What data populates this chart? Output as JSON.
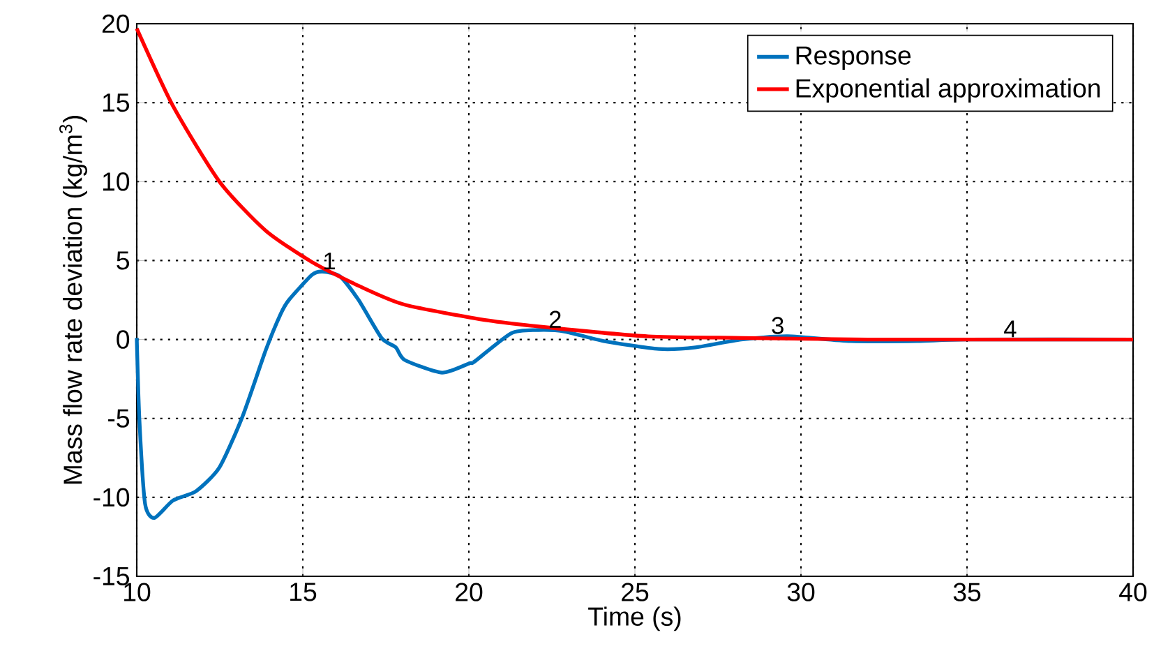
{
  "chart_data": {
    "type": "line",
    "xlabel": "Time (s)",
    "ylabel": "Mass flow rate deviation (kg/m$^{3}$)",
    "xlim": [
      10,
      40
    ],
    "ylim": [
      -15,
      20
    ],
    "xticks": [
      10,
      15,
      20,
      25,
      30,
      35,
      40
    ],
    "yticks": [
      -15,
      -10,
      -5,
      0,
      5,
      10,
      15,
      20
    ],
    "grid": true,
    "legend": "top right",
    "line_style": "solid",
    "marker": "none",
    "series": [
      {
        "name": "Response",
        "color": "#0072bd",
        "x": [
          10,
          10.08,
          10.25,
          10.53,
          11.09,
          11.79,
          12.49,
          13.18,
          13.88,
          14.33,
          14.58,
          15.28,
          15.6,
          16.12,
          16.68,
          17.37,
          17.8,
          18.07,
          19.19,
          20.03,
          20.17,
          21.28,
          22.1,
          22.9,
          24.06,
          25.72,
          26.83,
          28.2,
          29.6,
          31.5,
          33.5,
          35,
          40
        ],
        "values": [
          0.1,
          -5.1,
          -10.4,
          -11.3,
          -10.2,
          -9.6,
          -8.1,
          -4.9,
          -0.7,
          1.6,
          2.5,
          4.1,
          4.3,
          4.0,
          2.5,
          0.1,
          -0.5,
          -1.3,
          -2.1,
          -1.5,
          -1.4,
          0.4,
          0.6,
          0.5,
          -0.1,
          -0.6,
          -0.5,
          0,
          0.2,
          -0.1,
          -0.1,
          0,
          0
        ]
      },
      {
        "name": "Exponential approximation",
        "color": "#ff0000",
        "x": [
          10,
          11.09,
          12.49,
          13.88,
          15.28,
          16.68,
          18.07,
          20.6,
          22.67,
          25.4,
          28.2,
          32,
          36,
          40
        ],
        "values": [
          19.7,
          14.8,
          10.0,
          6.9,
          4.9,
          3.4,
          2.2,
          1.2,
          0.7,
          0.2,
          0.1,
          0,
          0,
          0
        ]
      }
    ],
    "annotations": [
      {
        "text": "1",
        "x": 15.8,
        "y": 4.3
      },
      {
        "text": "2",
        "x": 22.6,
        "y": 0.6
      },
      {
        "text": "3",
        "x": 29.3,
        "y": 0.2
      },
      {
        "text": "4",
        "x": 36.3,
        "y": 0
      }
    ]
  }
}
